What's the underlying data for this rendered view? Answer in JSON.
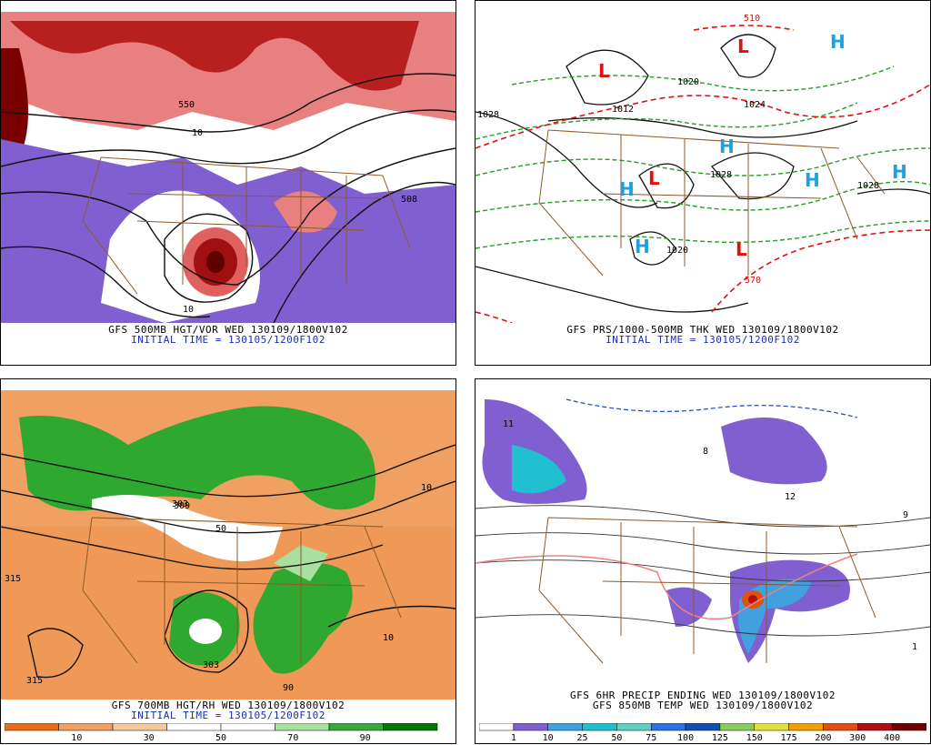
{
  "colors": {
    "vort_high": "#d32020",
    "vort_mid": "#f08080",
    "vort_low": "#8060d0",
    "rh_dry": "#f0a060",
    "rh_moist": "#2ea82e",
    "high": "#1ea0e0",
    "low": "#e01010",
    "thickness": "#2a9a2a",
    "border": "#8b5a2b"
  },
  "panels": [
    {
      "id": "500mb",
      "caption": "GFS 500MB HGT/VOR WED 130109/1800V102",
      "initial_time": "INITIAL TIME = 130105/1200F102",
      "contour_labels": [
        "550",
        "10",
        "10",
        "508"
      ]
    },
    {
      "id": "pressure",
      "caption": "GFS PRS/1000-500MB THK WED 130109/1800V102",
      "initial_time": "INITIAL TIME = 130105/1200F102",
      "systems": [
        "L",
        "L",
        "L",
        "L",
        "H",
        "H",
        "H",
        "H",
        "H",
        "H"
      ],
      "contour_labels": [
        "1012",
        "1020",
        "1028",
        "1028",
        "1020",
        "1024",
        "570",
        "510",
        "1028"
      ]
    },
    {
      "id": "700mb",
      "caption": "GFS 700MB HGT/RH WED 130109/1800V102",
      "initial_time": "INITIAL TIME = 130105/1200F102",
      "contour_labels": [
        "315",
        "303",
        "309",
        "50",
        "90",
        "10",
        "315",
        "303",
        "10"
      ],
      "colorbar": {
        "colors": [
          "#e86e1e",
          "#f0a060",
          "#f5c8a0",
          "#ffffff",
          "#ffffff",
          "#a8e0a0",
          "#3aa83a",
          "#007a00"
        ],
        "labels": [
          "10",
          "30",
          "50",
          "70",
          "90"
        ]
      }
    },
    {
      "id": "precip",
      "caption": "GFS 6HR PRECIP ENDING WED 130109/1800V102",
      "caption2": "GFS 850MB TEMP WED 130109/1800V102",
      "contour_labels": [
        "11",
        "9",
        "12",
        "8",
        "1"
      ],
      "colorbar": {
        "colors": [
          "#ffffff",
          "#8060d0",
          "#40a0e0",
          "#20c0d0",
          "#60d0c0",
          "#3070e0",
          "#1050b0",
          "#8acd5c",
          "#e0e040",
          "#f0a000",
          "#e05010",
          "#b01010",
          "#700000"
        ],
        "labels": [
          "1",
          "10",
          "25",
          "50",
          "75",
          "100",
          "125",
          "150",
          "175",
          "200",
          "300",
          "400"
        ]
      }
    }
  ]
}
